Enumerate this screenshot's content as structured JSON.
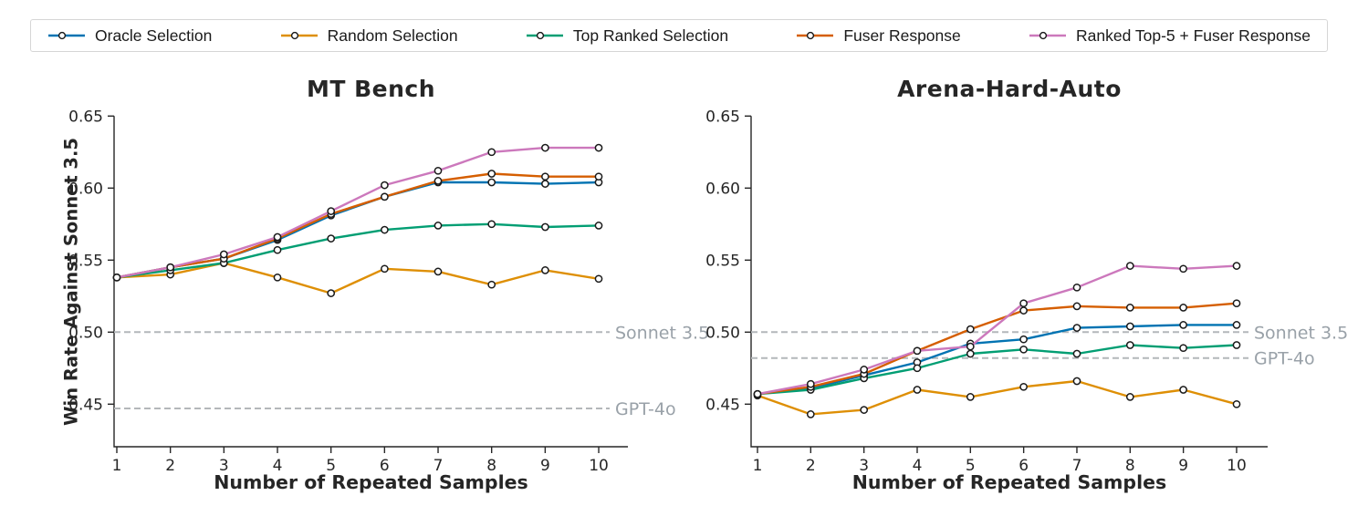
{
  "legend": {
    "items": [
      {
        "label": "Oracle Selection",
        "color": "#0173b2"
      },
      {
        "label": "Random Selection",
        "color": "#de8f05"
      },
      {
        "label": "Top Ranked Selection",
        "color": "#029e73"
      },
      {
        "label": "Fuser Response",
        "color": "#d55e00"
      },
      {
        "label": "Ranked Top-5 + Fuser Response",
        "color": "#cc78bc"
      }
    ]
  },
  "chart_data": [
    {
      "type": "line",
      "title": "MT Bench",
      "xlabel": "Number of Repeated Samples",
      "ylabel": "Win Rate Against Sonnet 3.5",
      "x": [
        1,
        2,
        3,
        4,
        5,
        6,
        7,
        8,
        9,
        10
      ],
      "ylim": [
        0.42,
        0.652
      ],
      "yticks": [
        0.45,
        0.5,
        0.55,
        0.6,
        0.65
      ],
      "grid": false,
      "marker": "open-circle",
      "legend_position": "top-outside",
      "series": [
        {
          "name": "Oracle Selection",
          "color": "#0173b2",
          "values": [
            0.538,
            0.545,
            0.551,
            0.564,
            0.581,
            0.594,
            0.604,
            0.604,
            0.603,
            0.604
          ]
        },
        {
          "name": "Random Selection",
          "color": "#de8f05",
          "values": [
            0.538,
            0.54,
            0.548,
            0.538,
            0.527,
            0.544,
            0.542,
            0.533,
            0.543,
            0.537
          ]
        },
        {
          "name": "Top Ranked Selection",
          "color": "#029e73",
          "values": [
            0.538,
            0.543,
            0.548,
            0.557,
            0.565,
            0.571,
            0.574,
            0.575,
            0.573,
            0.574
          ]
        },
        {
          "name": "Fuser Response",
          "color": "#d55e00",
          "values": [
            0.538,
            0.545,
            0.551,
            0.565,
            0.582,
            0.594,
            0.605,
            0.61,
            0.608,
            0.608
          ]
        },
        {
          "name": "Ranked Top-5 + Fuser Response",
          "color": "#cc78bc",
          "values": [
            0.538,
            0.545,
            0.554,
            0.566,
            0.584,
            0.602,
            0.612,
            0.625,
            0.628,
            0.628
          ]
        }
      ],
      "baselines": [
        {
          "label": "Sonnet 3.5",
          "value": 0.5
        },
        {
          "label": "GPT-4o",
          "value": 0.447
        }
      ]
    },
    {
      "type": "line",
      "title": "Arena-Hard-Auto",
      "xlabel": "Number of Repeated Samples",
      "ylabel": "",
      "x": [
        1,
        2,
        3,
        4,
        5,
        6,
        7,
        8,
        9,
        10
      ],
      "ylim": [
        0.42,
        0.652
      ],
      "yticks": [
        0.45,
        0.5,
        0.55,
        0.6,
        0.65
      ],
      "grid": false,
      "marker": "open-circle",
      "legend_position": "top-outside",
      "series": [
        {
          "name": "Oracle Selection",
          "color": "#0173b2",
          "values": [
            0.457,
            0.461,
            0.47,
            0.479,
            0.492,
            0.495,
            0.503,
            0.504,
            0.505,
            0.505
          ]
        },
        {
          "name": "Random Selection",
          "color": "#de8f05",
          "values": [
            0.456,
            0.443,
            0.446,
            0.46,
            0.455,
            0.462,
            0.466,
            0.455,
            0.46,
            0.45
          ]
        },
        {
          "name": "Top Ranked Selection",
          "color": "#029e73",
          "values": [
            0.457,
            0.46,
            0.468,
            0.475,
            0.485,
            0.488,
            0.485,
            0.491,
            0.489,
            0.491
          ]
        },
        {
          "name": "Fuser Response",
          "color": "#d55e00",
          "values": [
            0.457,
            0.462,
            0.471,
            0.487,
            0.502,
            0.515,
            0.518,
            0.517,
            0.517,
            0.52
          ]
        },
        {
          "name": "Ranked Top-5 + Fuser Response",
          "color": "#cc78bc",
          "values": [
            0.457,
            0.464,
            0.474,
            0.487,
            0.49,
            0.52,
            0.531,
            0.546,
            0.544,
            0.546
          ]
        }
      ],
      "baselines": [
        {
          "label": "Sonnet 3.5",
          "value": 0.5
        },
        {
          "label": "GPT-4o",
          "value": 0.482
        }
      ]
    }
  ]
}
